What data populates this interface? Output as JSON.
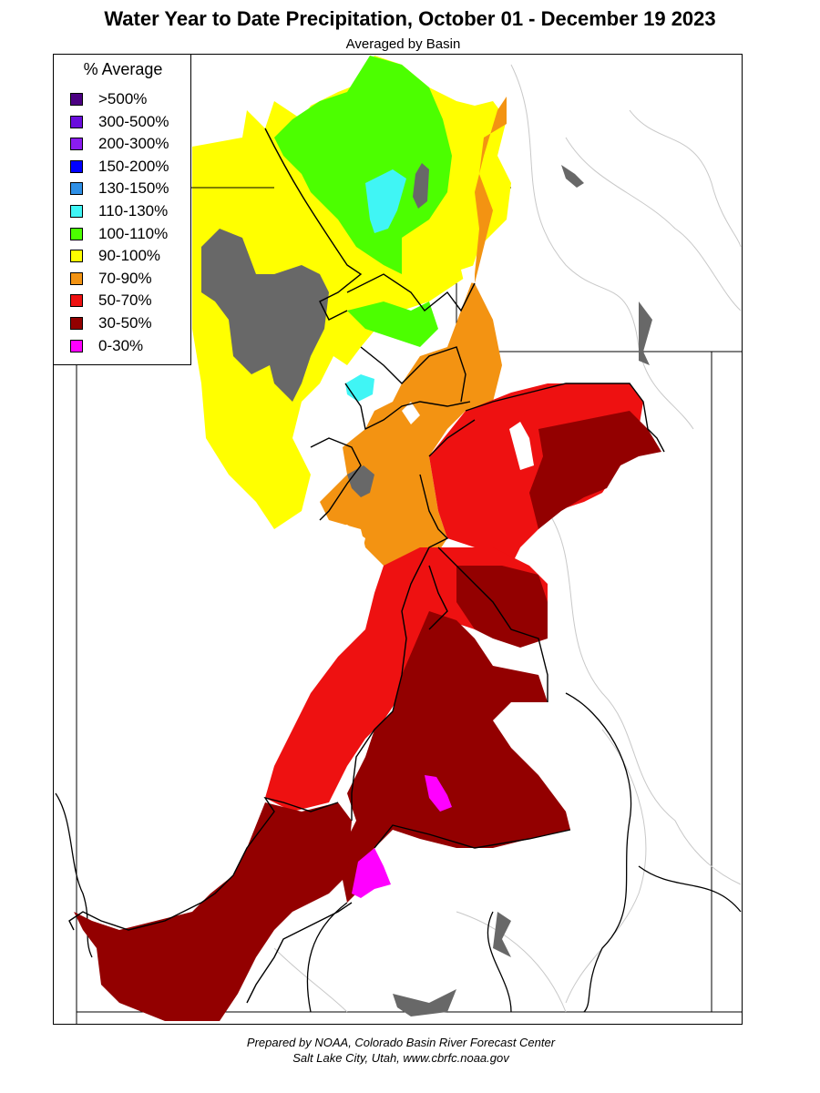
{
  "header": {
    "title": "Water Year to Date Precipitation, October 01  - December 19 2023",
    "subtitle": "Averaged by Basin"
  },
  "legend": {
    "title": "% Average",
    "items": [
      {
        "label": ">500%",
        "color": "#4b0082"
      },
      {
        "label": "300-500%",
        "color": "#6a0ddd"
      },
      {
        "label": "200-300%",
        "color": "#8a1cf0"
      },
      {
        "label": "150-200%",
        "color": "#0000ff"
      },
      {
        "label": "130-150%",
        "color": "#2e8fe6"
      },
      {
        "label": "110-130%",
        "color": "#40f5f5"
      },
      {
        "label": "100-110%",
        "color": "#4cff00"
      },
      {
        "label": "90-100%",
        "color": "#ffff00"
      },
      {
        "label": "70-90%",
        "color": "#f39312"
      },
      {
        "label": "50-70%",
        "color": "#ee1111"
      },
      {
        "label": "30-50%",
        "color": "#930000"
      },
      {
        "label": "0-30%",
        "color": "#ff00ff"
      }
    ]
  },
  "map": {
    "no_data_color": "#686868",
    "water_color": "#686868"
  },
  "footer": {
    "line1": "Prepared by NOAA, Colorado Basin River Forecast Center",
    "line2": "Salt Lake City, Utah, www.cbrfc.noaa.gov"
  }
}
